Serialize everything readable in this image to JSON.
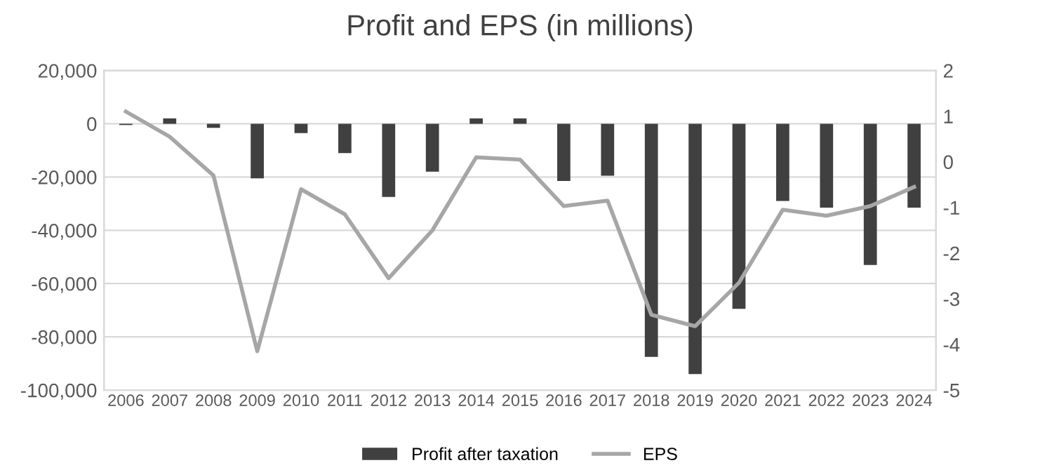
{
  "chart_data": {
    "type": "bar",
    "title": "Profit and EPS (in millions)",
    "categories": [
      "2006",
      "2007",
      "2008",
      "2009",
      "2010",
      "2011",
      "2012",
      "2013",
      "2014",
      "2015",
      "2016",
      "2017",
      "2018",
      "2019",
      "2020",
      "2021",
      "2022",
      "2023",
      "2024"
    ],
    "series": [
      {
        "name": "Profit after taxation",
        "color": "#404040",
        "values": [
          -500,
          2000,
          -1500,
          -20500,
          -3500,
          -11000,
          -27500,
          -18000,
          2000,
          2000,
          -21500,
          -19500,
          -87500,
          -94000,
          -69500,
          -29000,
          -31500,
          -53000,
          -31500
        ]
      },
      {
        "name": "EPS",
        "type": "line",
        "axis": "y2",
        "color": "#a6a6a6",
        "values": [
          1.1,
          0.55,
          -0.3,
          -4.15,
          -0.6,
          -1.15,
          -2.55,
          -1.5,
          0.1,
          0.05,
          -0.97,
          -0.85,
          -3.35,
          -3.6,
          -2.65,
          -1.05,
          -1.18,
          -0.97,
          -0.55
        ]
      }
    ],
    "ylim": [
      -100000,
      20000
    ],
    "yticks": [
      {
        "value": 20000,
        "label": "20,000"
      },
      0,
      {
        "value": -20000,
        "label": "-20,000"
      },
      {
        "value": -40000,
        "label": "-40,000"
      },
      {
        "value": -60000,
        "label": "-60,000"
      },
      {
        "value": -80000,
        "label": "-80,000"
      },
      {
        "value": -100000,
        "label": "-100,000"
      }
    ],
    "y2lim": [
      -5,
      2
    ],
    "y2ticks": [
      -5,
      -4,
      -3,
      -2,
      -1,
      0,
      1,
      2
    ],
    "grid": "y",
    "legend": "bottom",
    "marker": "none",
    "line_style": "solid"
  }
}
